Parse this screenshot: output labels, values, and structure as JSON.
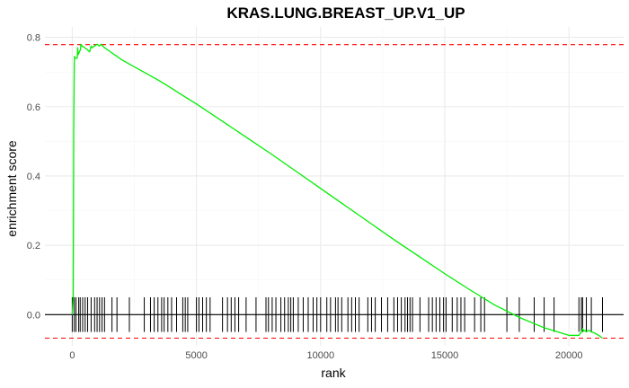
{
  "chart_data": {
    "type": "line",
    "title": "KRAS.LUNG.BREAST_UP.V1_UP",
    "xlabel": "rank",
    "ylabel": "enrichment score",
    "xlim": [
      -1100,
      22200
    ],
    "ylim": [
      -0.09,
      0.83
    ],
    "x_ticks": [
      0,
      5000,
      10000,
      15000,
      20000
    ],
    "x_tick_labels": [
      "0",
      "5000",
      "10000",
      "15000",
      "20000"
    ],
    "y_ticks": [
      0.0,
      0.2,
      0.4,
      0.6,
      0.8
    ],
    "y_tick_labels": [
      "0.0",
      "0.2",
      "0.4",
      "0.6",
      "0.8"
    ],
    "grid": true,
    "legend": "none",
    "colors": {
      "curve": "#00ee00",
      "threshold": "#ff0000",
      "zero_line": "#000000",
      "hits": "#000000",
      "grid_major": "#ebebeb",
      "grid_minor": "#f5f5f5"
    },
    "thresholds": [
      0.779,
      -0.068
    ],
    "series": [
      {
        "x": [
          0,
          40,
          60,
          80,
          90,
          110,
          200,
          220,
          240,
          330,
          350,
          400,
          500,
          600,
          700,
          740,
          760,
          800,
          900,
          1000,
          1100,
          1150,
          1200,
          1300,
          1500,
          2000,
          2500,
          3000,
          3500,
          4000,
          4500,
          5000,
          5500,
          6000,
          7000,
          8000,
          9000,
          10000,
          11000,
          12000,
          13000,
          14000,
          15000,
          16000,
          17000,
          18000,
          19000,
          20000,
          20400,
          20500,
          20550,
          20600,
          20650,
          20700,
          20800,
          20900,
          21000,
          21100,
          21200,
          21350
        ],
        "y": [
          0.0,
          0.05,
          0.54,
          0.71,
          0.745,
          0.74,
          0.74,
          0.77,
          0.75,
          0.765,
          0.78,
          0.775,
          0.77,
          0.765,
          0.758,
          0.77,
          0.775,
          0.77,
          0.775,
          0.78,
          0.775,
          0.78,
          0.777,
          0.77,
          0.76,
          0.735,
          0.715,
          0.695,
          0.675,
          0.653,
          0.63,
          0.608,
          0.584,
          0.56,
          0.512,
          0.464,
          0.414,
          0.364,
          0.314,
          0.264,
          0.214,
          0.166,
          0.118,
          0.072,
          0.028,
          -0.008,
          -0.038,
          -0.06,
          -0.06,
          -0.05,
          -0.04,
          -0.048,
          -0.046,
          -0.05,
          -0.045,
          -0.05,
          -0.052,
          -0.056,
          -0.06,
          -0.068
        ]
      }
    ],
    "hits": [
      0,
      80,
      150,
      260,
      320,
      420,
      520,
      620,
      760,
      900,
      1000,
      1100,
      1200,
      1300,
      1600,
      1800,
      2300,
      2900,
      3150,
      3300,
      3450,
      3600,
      3700,
      3850,
      4000,
      4200,
      4450,
      4550,
      4650,
      5000,
      5100,
      5250,
      5400,
      5550,
      6050,
      6250,
      6400,
      6550,
      6700,
      7000,
      7400,
      7800,
      7900,
      8050,
      8200,
      8400,
      8550,
      8700,
      8800,
      8900,
      9100,
      9300,
      9500,
      9700,
      9850,
      10000,
      10250,
      10400,
      10600,
      10700,
      10850,
      11100,
      11250,
      11400,
      11550,
      11900,
      12050,
      12200,
      12450,
      12700,
      12950,
      13100,
      13250,
      13400,
      13500,
      13600,
      13700,
      14000,
      14350,
      14500,
      14650,
      14800,
      14950,
      15050,
      15300,
      15500,
      15650,
      15800,
      16200,
      16450,
      16600,
      17500,
      18000,
      18600,
      19000,
      19400,
      20400,
      20500,
      20550,
      20700,
      20900,
      21350
    ]
  }
}
